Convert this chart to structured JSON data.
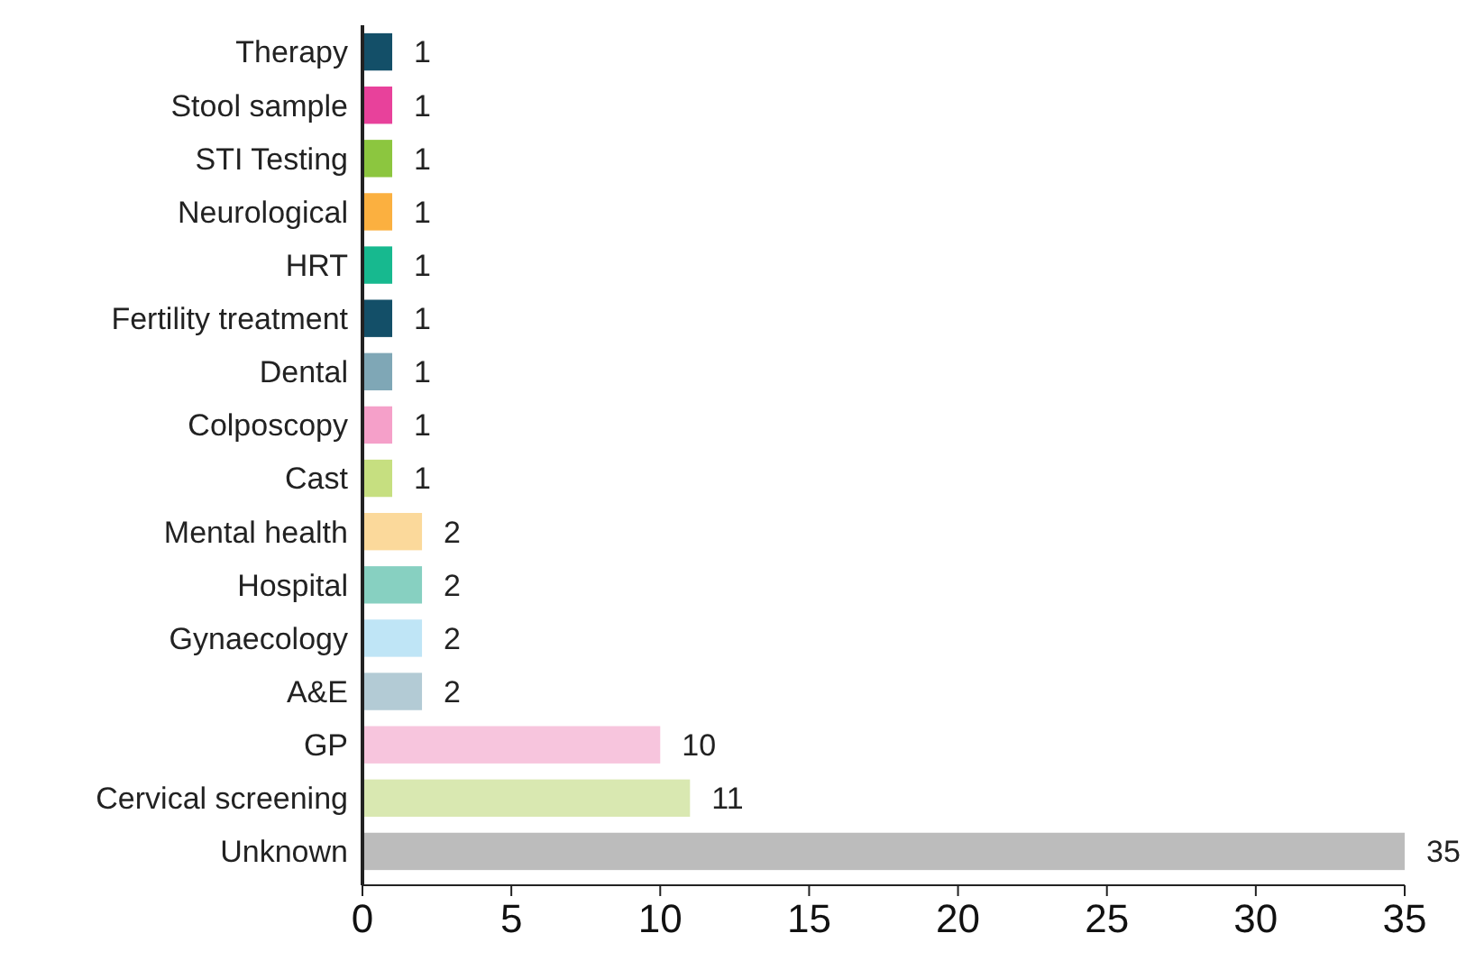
{
  "chart_data": {
    "type": "bar",
    "orientation": "horizontal",
    "categories": [
      "Therapy",
      "Stool sample",
      "STI Testing",
      "Neurological",
      "HRT",
      "Fertility treatment",
      "Dental",
      "Colposcopy",
      "Cast",
      "Mental health",
      "Hospital",
      "Gynaecology",
      "A&E",
      "GP",
      "Cervical screening",
      "Unknown"
    ],
    "values": [
      1,
      1,
      1,
      1,
      1,
      1,
      1,
      1,
      1,
      2,
      2,
      2,
      2,
      10,
      11,
      35
    ],
    "colors": [
      "#134f68",
      "#e8419b",
      "#8cc63f",
      "#fbb040",
      "#17b98f",
      "#134f68",
      "#7fa7b6",
      "#f5a0c9",
      "#c6df80",
      "#fbd99b",
      "#87d0c1",
      "#bfe5f6",
      "#b3cbd5",
      "#f7c5dd",
      "#d9e8b1",
      "#bcbcbc"
    ],
    "xlim": [
      0,
      35
    ],
    "xticks": [
      0,
      5,
      10,
      15,
      20,
      25,
      30,
      35
    ],
    "data_labels": true
  }
}
